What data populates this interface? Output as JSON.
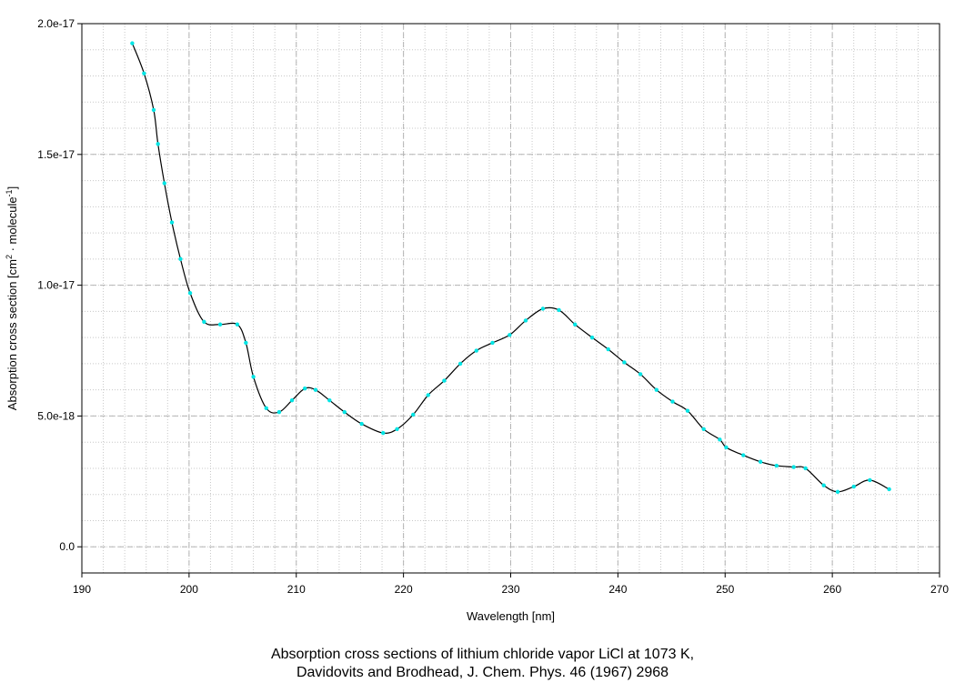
{
  "chart_data": {
    "type": "line",
    "title": "",
    "xlabel": "Wavelength [nm]",
    "ylabel_parts": [
      "Absorption cross section [cm",
      "2",
      " · molecule",
      "-1",
      "]"
    ],
    "xlim": [
      190,
      270
    ],
    "ylim": [
      -1e-18,
      2e-17
    ],
    "xticks": [
      190,
      200,
      210,
      220,
      230,
      240,
      250,
      260,
      270
    ],
    "xtick_labels": [
      "190",
      "200",
      "210",
      "220",
      "230",
      "240",
      "250",
      "260",
      "270"
    ],
    "yticks": [
      0,
      5e-18,
      1e-17,
      1.5e-17,
      2e-17
    ],
    "ytick_labels": [
      "0.0",
      "5.0e-18",
      "1.0e-17",
      "1.5e-17",
      "2.0e-17"
    ],
    "grid": true,
    "legend": "none",
    "line_color": "#000000",
    "marker_color": "#00e5e5",
    "series": [
      {
        "x": [
          194.7,
          195.8,
          196.7,
          197.1,
          197.7,
          198.4,
          199.2,
          200.1,
          201.4,
          202.9,
          204.5,
          205.3,
          206.0,
          207.2,
          208.4,
          209.6,
          210.8,
          211.8,
          213.1,
          214.5,
          216.1,
          218.1,
          219.4,
          220.9,
          222.3,
          223.8,
          225.3,
          226.8,
          228.3,
          229.9,
          231.4,
          233.0,
          234.5,
          236.0,
          237.6,
          239.1,
          240.6,
          242.1,
          243.6,
          245.1,
          246.5,
          248.0,
          249.5,
          250.1,
          251.7,
          253.3,
          254.8,
          256.4,
          257.5,
          259.2,
          260.5,
          262.0,
          263.5,
          265.3
        ],
        "y": [
          1.925e-17,
          1.81e-17,
          1.67e-17,
          1.54e-17,
          1.39e-17,
          1.24e-17,
          1.1e-17,
          9.7e-18,
          8.6e-18,
          8.5e-18,
          8.5e-18,
          7.8e-18,
          6.5e-18,
          5.3e-18,
          5.15e-18,
          5.6e-18,
          6.05e-18,
          6e-18,
          5.6e-18,
          5.15e-18,
          4.7e-18,
          4.35e-18,
          4.5e-18,
          5.05e-18,
          5.8e-18,
          6.35e-18,
          7e-18,
          7.5e-18,
          7.8e-18,
          8.1e-18,
          8.65e-18,
          9.1e-18,
          9.05e-18,
          8.5e-18,
          8e-18,
          7.55e-18,
          7.05e-18,
          6.6e-18,
          6e-18,
          5.55e-18,
          5.2e-18,
          4.5e-18,
          4.1e-18,
          3.8e-18,
          3.5e-18,
          3.25e-18,
          3.1e-18,
          3.05e-18,
          3e-18,
          2.35e-18,
          2.1e-18,
          2.3e-18,
          2.55e-18,
          2.2e-18
        ]
      }
    ]
  },
  "caption": {
    "line1": "Absorption cross sections of lithium chloride vapor LiCl at 1073 K,",
    "line2": "Davidovits and Brodhead, J. Chem. Phys. 46 (1967) 2968"
  }
}
